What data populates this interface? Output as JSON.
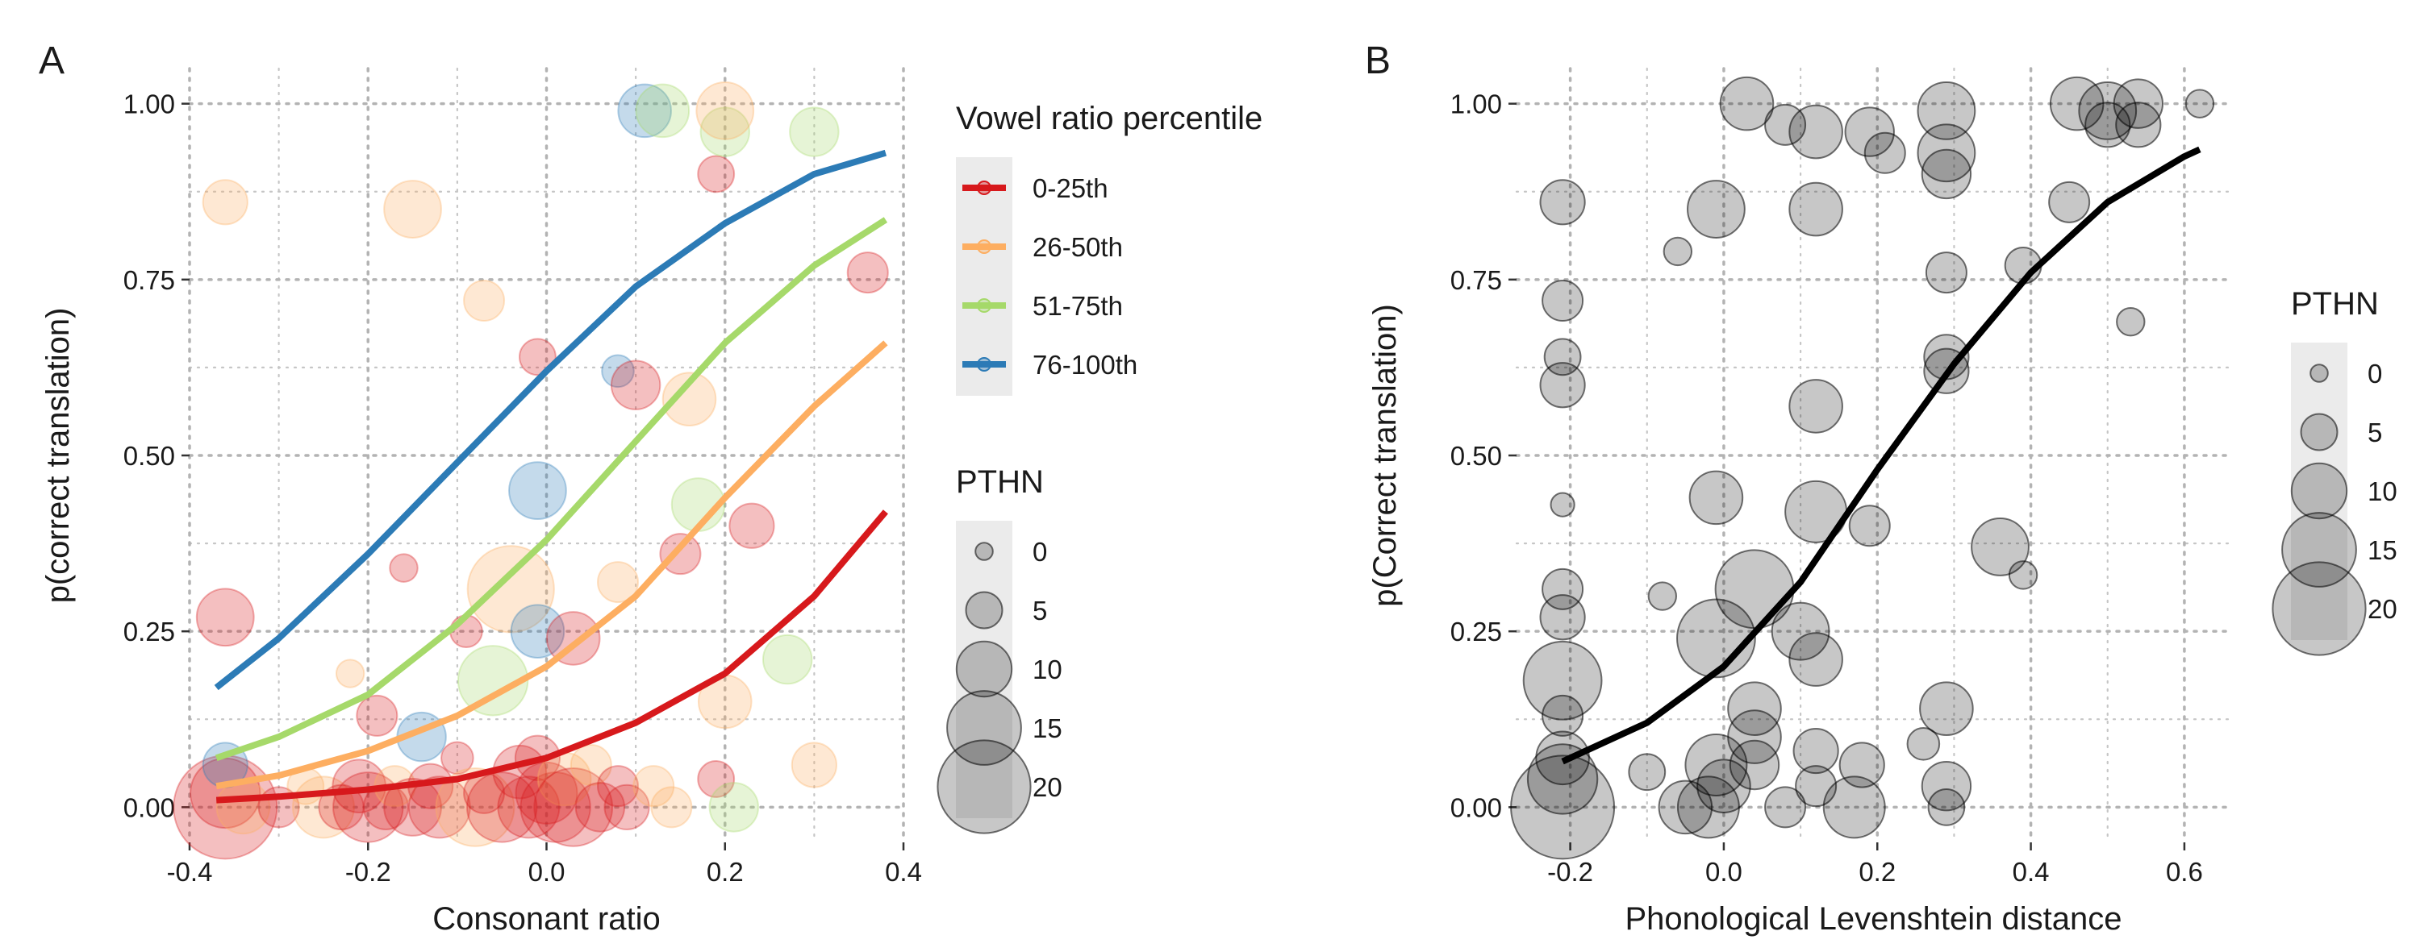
{
  "chart_data": [
    {
      "panel": "A",
      "type": "scatter",
      "xlabel": "Consonant ratio",
      "ylabel": "p(correct translation)",
      "xlim": [
        -0.4,
        0.4
      ],
      "ylim": [
        -0.05,
        1.05
      ],
      "xticks": [
        -0.4,
        -0.2,
        0.0,
        0.2,
        0.4
      ],
      "xtick_labels": [
        "-0.4",
        "-0.2",
        "0.0",
        "0.2",
        "0.4"
      ],
      "yticks": [
        0,
        0.25,
        0.5,
        0.75,
        1
      ],
      "ytick_labels": [
        "0.00",
        "0.25",
        "0.50",
        "0.75",
        "1.00"
      ],
      "grid": true,
      "colors": {
        "0-25th": "#d7191c",
        "26-50th": "#fdae61",
        "51-75th": "#a6d96a",
        "76-100th": "#2c7bb6"
      },
      "legends": [
        {
          "title": "Vowel ratio percentile",
          "type": "color",
          "entries": [
            "0-25th",
            "26-50th",
            "51-75th",
            "76-100th"
          ],
          "placement": "right"
        },
        {
          "title": "PTHN",
          "type": "size",
          "entries": [
            "0",
            "5",
            "10",
            "15",
            "20"
          ],
          "placement": "right"
        }
      ],
      "series": [
        {
          "name": "0-25th",
          "kind": "fit",
          "x": [
            -0.37,
            -0.3,
            -0.2,
            -0.1,
            0.0,
            0.1,
            0.2,
            0.3,
            0.38
          ],
          "y": [
            0.01,
            0.015,
            0.025,
            0.04,
            0.07,
            0.12,
            0.19,
            0.3,
            0.42
          ]
        },
        {
          "name": "26-50th",
          "kind": "fit",
          "x": [
            -0.37,
            -0.3,
            -0.2,
            -0.1,
            0.0,
            0.1,
            0.2,
            0.3,
            0.38
          ],
          "y": [
            0.03,
            0.045,
            0.08,
            0.13,
            0.2,
            0.3,
            0.44,
            0.57,
            0.66
          ]
        },
        {
          "name": "51-75th",
          "kind": "fit",
          "x": [
            -0.37,
            -0.3,
            -0.2,
            -0.1,
            0.0,
            0.1,
            0.2,
            0.3,
            0.38
          ],
          "y": [
            0.07,
            0.1,
            0.16,
            0.26,
            0.38,
            0.52,
            0.66,
            0.77,
            0.835
          ]
        },
        {
          "name": "76-100th",
          "kind": "fit",
          "x": [
            -0.37,
            -0.3,
            -0.2,
            -0.1,
            0.0,
            0.1,
            0.2,
            0.3,
            0.38
          ],
          "y": [
            0.17,
            0.24,
            0.36,
            0.49,
            0.62,
            0.74,
            0.83,
            0.9,
            0.93
          ]
        }
      ],
      "points": [
        {
          "x": -0.36,
          "y": 0.0,
          "pthn": 20,
          "group": "0-25th"
        },
        {
          "x": -0.36,
          "y": 0.02,
          "pthn": 12,
          "group": "0-25th"
        },
        {
          "x": -0.34,
          "y": 0.0,
          "pthn": 8,
          "group": "26-50th"
        },
        {
          "x": -0.36,
          "y": 0.06,
          "pthn": 6,
          "group": "76-100th"
        },
        {
          "x": -0.36,
          "y": 0.27,
          "pthn": 9,
          "group": "0-25th"
        },
        {
          "x": -0.36,
          "y": 0.86,
          "pthn": 6,
          "group": "26-50th"
        },
        {
          "x": -0.3,
          "y": 0.0,
          "pthn": 5,
          "group": "0-25th"
        },
        {
          "x": -0.27,
          "y": 0.03,
          "pthn": 4,
          "group": "26-50th"
        },
        {
          "x": -0.25,
          "y": 0.0,
          "pthn": 10,
          "group": "26-50th"
        },
        {
          "x": -0.23,
          "y": 0.0,
          "pthn": 6,
          "group": "0-25th"
        },
        {
          "x": -0.22,
          "y": 0.19,
          "pthn": 2,
          "group": "26-50th"
        },
        {
          "x": -0.21,
          "y": 0.03,
          "pthn": 8,
          "group": "0-25th"
        },
        {
          "x": -0.2,
          "y": 0.0,
          "pthn": 12,
          "group": "0-25th"
        },
        {
          "x": -0.19,
          "y": 0.13,
          "pthn": 5,
          "group": "0-25th"
        },
        {
          "x": -0.18,
          "y": 0.0,
          "pthn": 6,
          "group": "0-25th"
        },
        {
          "x": -0.17,
          "y": 0.03,
          "pthn": 5,
          "group": "26-50th"
        },
        {
          "x": -0.16,
          "y": 0.34,
          "pthn": 2,
          "group": "0-25th"
        },
        {
          "x": -0.15,
          "y": 0.0,
          "pthn": 9,
          "group": "0-25th"
        },
        {
          "x": -0.15,
          "y": 0.85,
          "pthn": 9,
          "group": "26-50th"
        },
        {
          "x": -0.14,
          "y": 0.1,
          "pthn": 7,
          "group": "76-100th"
        },
        {
          "x": -0.13,
          "y": 0.03,
          "pthn": 6,
          "group": "0-25th"
        },
        {
          "x": -0.12,
          "y": 0.0,
          "pthn": 10,
          "group": "0-25th"
        },
        {
          "x": -0.1,
          "y": 0.07,
          "pthn": 3,
          "group": "0-25th"
        },
        {
          "x": -0.09,
          "y": 0.25,
          "pthn": 3,
          "group": "0-25th"
        },
        {
          "x": -0.08,
          "y": 0.0,
          "pthn": 14,
          "group": "26-50th"
        },
        {
          "x": -0.07,
          "y": 0.02,
          "pthn": 5,
          "group": "0-25th"
        },
        {
          "x": -0.07,
          "y": 0.72,
          "pthn": 5,
          "group": "26-50th"
        },
        {
          "x": -0.06,
          "y": 0.18,
          "pthn": 12,
          "group": "51-75th"
        },
        {
          "x": -0.05,
          "y": 0.0,
          "pthn": 12,
          "group": "0-25th"
        },
        {
          "x": -0.04,
          "y": 0.31,
          "pthn": 16,
          "group": "26-50th"
        },
        {
          "x": -0.03,
          "y": 0.05,
          "pthn": 8,
          "group": "0-25th"
        },
        {
          "x": -0.02,
          "y": 0.0,
          "pthn": 10,
          "group": "0-25th"
        },
        {
          "x": -0.01,
          "y": 0.07,
          "pthn": 6,
          "group": "0-25th"
        },
        {
          "x": -0.01,
          "y": 0.64,
          "pthn": 4,
          "group": "0-25th"
        },
        {
          "x": 0.0,
          "y": 0.02,
          "pthn": 10,
          "group": "0-25th"
        },
        {
          "x": -0.01,
          "y": 0.25,
          "pthn": 8,
          "group": "76-100th"
        },
        {
          "x": -0.01,
          "y": 0.45,
          "pthn": 9,
          "group": "76-100th"
        },
        {
          "x": 0.01,
          "y": 0.0,
          "pthn": 12,
          "group": "0-25th"
        },
        {
          "x": 0.02,
          "y": 0.04,
          "pthn": 8,
          "group": "26-50th"
        },
        {
          "x": 0.03,
          "y": 0.24,
          "pthn": 8,
          "group": "0-25th"
        },
        {
          "x": 0.03,
          "y": 0.0,
          "pthn": 14,
          "group": "0-25th"
        },
        {
          "x": 0.05,
          "y": 0.06,
          "pthn": 5,
          "group": "26-50th"
        },
        {
          "x": 0.06,
          "y": 0.0,
          "pthn": 7,
          "group": "0-25th"
        },
        {
          "x": 0.08,
          "y": 0.03,
          "pthn": 5,
          "group": "0-25th"
        },
        {
          "x": 0.08,
          "y": 0.62,
          "pthn": 3,
          "group": "76-100th"
        },
        {
          "x": 0.08,
          "y": 0.32,
          "pthn": 5,
          "group": "26-50th"
        },
        {
          "x": 0.09,
          "y": 0.0,
          "pthn": 6,
          "group": "0-25th"
        },
        {
          "x": 0.1,
          "y": 0.6,
          "pthn": 7,
          "group": "0-25th"
        },
        {
          "x": 0.11,
          "y": 0.99,
          "pthn": 8,
          "group": "76-100th"
        },
        {
          "x": 0.12,
          "y": 0.03,
          "pthn": 5,
          "group": "26-50th"
        },
        {
          "x": 0.13,
          "y": 0.99,
          "pthn": 8,
          "group": "51-75th"
        },
        {
          "x": 0.14,
          "y": 0.0,
          "pthn": 5,
          "group": "26-50th"
        },
        {
          "x": 0.15,
          "y": 0.36,
          "pthn": 5,
          "group": "0-25th"
        },
        {
          "x": 0.16,
          "y": 0.58,
          "pthn": 8,
          "group": "26-50th"
        },
        {
          "x": 0.17,
          "y": 0.43,
          "pthn": 8,
          "group": "51-75th"
        },
        {
          "x": 0.19,
          "y": 0.04,
          "pthn": 4,
          "group": "0-25th"
        },
        {
          "x": 0.19,
          "y": 0.9,
          "pthn": 4,
          "group": "0-25th"
        },
        {
          "x": 0.2,
          "y": 0.96,
          "pthn": 7,
          "group": "51-75th"
        },
        {
          "x": 0.2,
          "y": 0.99,
          "pthn": 9,
          "group": "26-50th"
        },
        {
          "x": 0.2,
          "y": 0.15,
          "pthn": 8,
          "group": "26-50th"
        },
        {
          "x": 0.21,
          "y": 0.0,
          "pthn": 7,
          "group": "51-75th"
        },
        {
          "x": 0.23,
          "y": 0.4,
          "pthn": 6,
          "group": "0-25th"
        },
        {
          "x": 0.27,
          "y": 0.21,
          "pthn": 7,
          "group": "51-75th"
        },
        {
          "x": 0.3,
          "y": 0.96,
          "pthn": 7,
          "group": "51-75th"
        },
        {
          "x": 0.3,
          "y": 0.06,
          "pthn": 6,
          "group": "26-50th"
        },
        {
          "x": 0.36,
          "y": 0.76,
          "pthn": 5,
          "group": "0-25th"
        }
      ]
    },
    {
      "panel": "B",
      "type": "scatter",
      "xlabel": "Phonological Levenshtein distance",
      "ylabel": "p(Correct translation)",
      "xlim": [
        -0.27,
        0.66
      ],
      "ylim": [
        -0.05,
        1.05
      ],
      "xticks": [
        -0.2,
        0.0,
        0.2,
        0.4,
        0.6
      ],
      "xtick_labels": [
        "-0.2",
        "0.0",
        "0.2",
        "0.4",
        "0.6"
      ],
      "yticks": [
        0,
        0.25,
        0.5,
        0.75,
        1
      ],
      "ytick_labels": [
        "0.00",
        "0.25",
        "0.50",
        "0.75",
        "1.00"
      ],
      "grid": true,
      "legends": [
        {
          "title": "PTHN",
          "type": "size",
          "entries": [
            "0",
            "5",
            "10",
            "15",
            "20"
          ],
          "placement": "right"
        }
      ],
      "series": [
        {
          "kind": "fit",
          "x": [
            -0.21,
            -0.1,
            0.0,
            0.1,
            0.2,
            0.3,
            0.4,
            0.5,
            0.6,
            0.62
          ],
          "y": [
            0.065,
            0.12,
            0.2,
            0.32,
            0.48,
            0.63,
            0.76,
            0.86,
            0.925,
            0.935
          ]
        }
      ],
      "points": [
        {
          "x": -0.21,
          "y": 0.0,
          "pthn": 20
        },
        {
          "x": -0.21,
          "y": 0.04,
          "pthn": 12
        },
        {
          "x": -0.21,
          "y": 0.07,
          "pthn": 8
        },
        {
          "x": -0.21,
          "y": 0.13,
          "pthn": 5
        },
        {
          "x": -0.21,
          "y": 0.18,
          "pthn": 14
        },
        {
          "x": -0.21,
          "y": 0.27,
          "pthn": 6
        },
        {
          "x": -0.21,
          "y": 0.31,
          "pthn": 5
        },
        {
          "x": -0.21,
          "y": 0.6,
          "pthn": 6
        },
        {
          "x": -0.21,
          "y": 0.64,
          "pthn": 4
        },
        {
          "x": -0.21,
          "y": 0.72,
          "pthn": 5
        },
        {
          "x": -0.21,
          "y": 0.86,
          "pthn": 6
        },
        {
          "x": -0.21,
          "y": 0.43,
          "pthn": 1
        },
        {
          "x": -0.05,
          "y": 0.0,
          "pthn": 8
        },
        {
          "x": -0.02,
          "y": 0.0,
          "pthn": 10
        },
        {
          "x": -0.01,
          "y": 0.06,
          "pthn": 10
        },
        {
          "x": 0.0,
          "y": 0.03,
          "pthn": 8
        },
        {
          "x": -0.01,
          "y": 0.24,
          "pthn": 14
        },
        {
          "x": -0.01,
          "y": 0.44,
          "pthn": 8
        },
        {
          "x": -0.01,
          "y": 0.85,
          "pthn": 9
        },
        {
          "x": 0.04,
          "y": 0.31,
          "pthn": 14
        },
        {
          "x": 0.03,
          "y": 1.0,
          "pthn": 8
        },
        {
          "x": 0.08,
          "y": 0.0,
          "pthn": 5
        },
        {
          "x": 0.04,
          "y": 0.14,
          "pthn": 8
        },
        {
          "x": 0.04,
          "y": 0.1,
          "pthn": 8
        },
        {
          "x": 0.04,
          "y": 0.06,
          "pthn": 7
        },
        {
          "x": 0.1,
          "y": 0.25,
          "pthn": 9
        },
        {
          "x": 0.12,
          "y": 0.42,
          "pthn": 10
        },
        {
          "x": 0.12,
          "y": 0.57,
          "pthn": 8
        },
        {
          "x": 0.12,
          "y": 0.85,
          "pthn": 8
        },
        {
          "x": 0.12,
          "y": 0.96,
          "pthn": 8
        },
        {
          "x": 0.12,
          "y": 0.21,
          "pthn": 8
        },
        {
          "x": 0.12,
          "y": 0.08,
          "pthn": 6
        },
        {
          "x": 0.12,
          "y": 0.03,
          "pthn": 5
        },
        {
          "x": 0.18,
          "y": 0.06,
          "pthn": 6
        },
        {
          "x": 0.19,
          "y": 0.4,
          "pthn": 5
        },
        {
          "x": 0.19,
          "y": 0.96,
          "pthn": 7
        },
        {
          "x": 0.21,
          "y": 0.93,
          "pthn": 5
        },
        {
          "x": 0.17,
          "y": 0.0,
          "pthn": 10
        },
        {
          "x": 0.29,
          "y": 0.0,
          "pthn": 4
        },
        {
          "x": 0.29,
          "y": 0.03,
          "pthn": 7
        },
        {
          "x": 0.29,
          "y": 0.14,
          "pthn": 8
        },
        {
          "x": 0.29,
          "y": 0.62,
          "pthn": 6
        },
        {
          "x": 0.29,
          "y": 0.64,
          "pthn": 6
        },
        {
          "x": 0.29,
          "y": 0.76,
          "pthn": 5
        },
        {
          "x": 0.29,
          "y": 0.9,
          "pthn": 7
        },
        {
          "x": 0.29,
          "y": 0.93,
          "pthn": 9
        },
        {
          "x": 0.29,
          "y": 0.99,
          "pthn": 9
        },
        {
          "x": 0.36,
          "y": 0.37,
          "pthn": 9
        },
        {
          "x": 0.39,
          "y": 0.77,
          "pthn": 4
        },
        {
          "x": 0.45,
          "y": 0.86,
          "pthn": 5
        },
        {
          "x": 0.46,
          "y": 1.0,
          "pthn": 8
        },
        {
          "x": 0.5,
          "y": 0.99,
          "pthn": 9
        },
        {
          "x": 0.5,
          "y": 0.97,
          "pthn": 6
        },
        {
          "x": 0.54,
          "y": 1.0,
          "pthn": 7
        },
        {
          "x": 0.54,
          "y": 0.97,
          "pthn": 6
        },
        {
          "x": 0.62,
          "y": 1.0,
          "pthn": 2
        },
        {
          "x": -0.1,
          "y": 0.05,
          "pthn": 4
        },
        {
          "x": -0.08,
          "y": 0.3,
          "pthn": 2
        },
        {
          "x": -0.06,
          "y": 0.79,
          "pthn": 2
        },
        {
          "x": 0.08,
          "y": 0.97,
          "pthn": 5
        },
        {
          "x": 0.26,
          "y": 0.09,
          "pthn": 3
        },
        {
          "x": 0.39,
          "y": 0.33,
          "pthn": 2
        },
        {
          "x": 0.53,
          "y": 0.69,
          "pthn": 2
        }
      ]
    }
  ]
}
